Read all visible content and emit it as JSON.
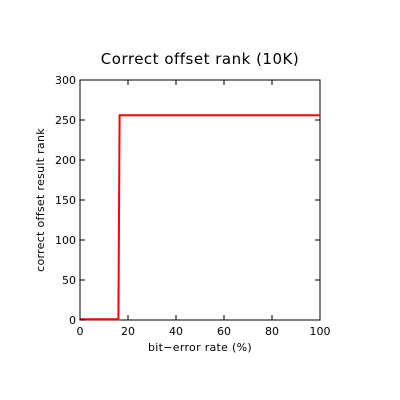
{
  "chart_data": {
    "type": "line",
    "title": "Correct offset rank (10K)",
    "xlabel": "bit−error rate (%)",
    "ylabel": "correct offset result rank",
    "xlim": [
      0,
      100
    ],
    "ylim": [
      0,
      300
    ],
    "xticks": [
      0,
      20,
      40,
      60,
      80,
      100
    ],
    "yticks": [
      0,
      50,
      100,
      150,
      200,
      250,
      300
    ],
    "grid": false,
    "series": [
      {
        "color": "#ff0000",
        "x": [
          0,
          16,
          16.5,
          100
        ],
        "y": [
          1,
          1,
          256,
          256
        ]
      }
    ]
  }
}
